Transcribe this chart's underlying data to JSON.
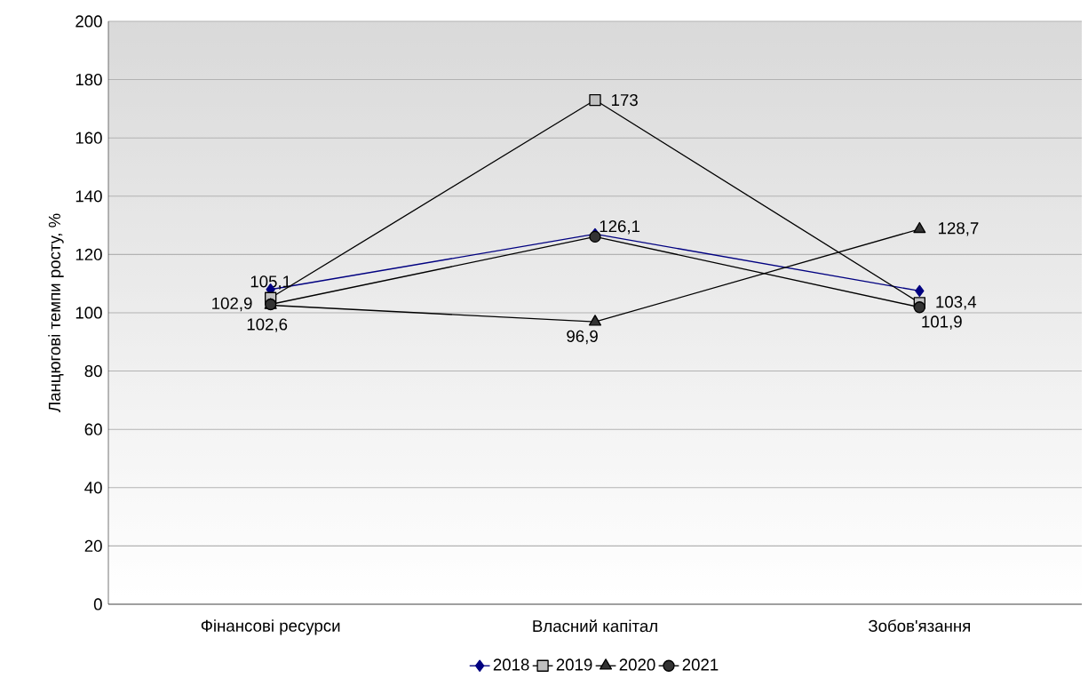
{
  "chart_data": {
    "type": "line",
    "ylabel": "Ланцюгові темпи росту, %",
    "categories": [
      "Фінансові ресурси",
      "Власний капітал",
      "Зобов'язання"
    ],
    "ylim": [
      0,
      200
    ],
    "yticks": [
      0,
      20,
      40,
      60,
      80,
      100,
      120,
      140,
      160,
      180,
      200
    ],
    "grid": "y",
    "legend": "bottom",
    "series": [
      {
        "name": "2018",
        "color": "#000080",
        "marker": "diamond",
        "values": [
          108,
          127,
          107.5
        ]
      },
      {
        "name": "2019",
        "color": "#c0c0c0",
        "marker": "square",
        "values": [
          105.1,
          173,
          103.4
        ],
        "value_labels": [
          "105,1",
          "173",
          "103,4"
        ]
      },
      {
        "name": "2020",
        "color": "#333333",
        "marker": "triangle",
        "values": [
          102.6,
          96.9,
          128.7
        ],
        "value_labels": [
          "102,6",
          "96,9",
          "128,7"
        ]
      },
      {
        "name": "2021",
        "color": "#333333",
        "marker": "circle",
        "values": [
          102.9,
          126.1,
          101.9
        ],
        "value_labels": [
          "102,9",
          "126,1",
          "101,9"
        ]
      }
    ]
  }
}
